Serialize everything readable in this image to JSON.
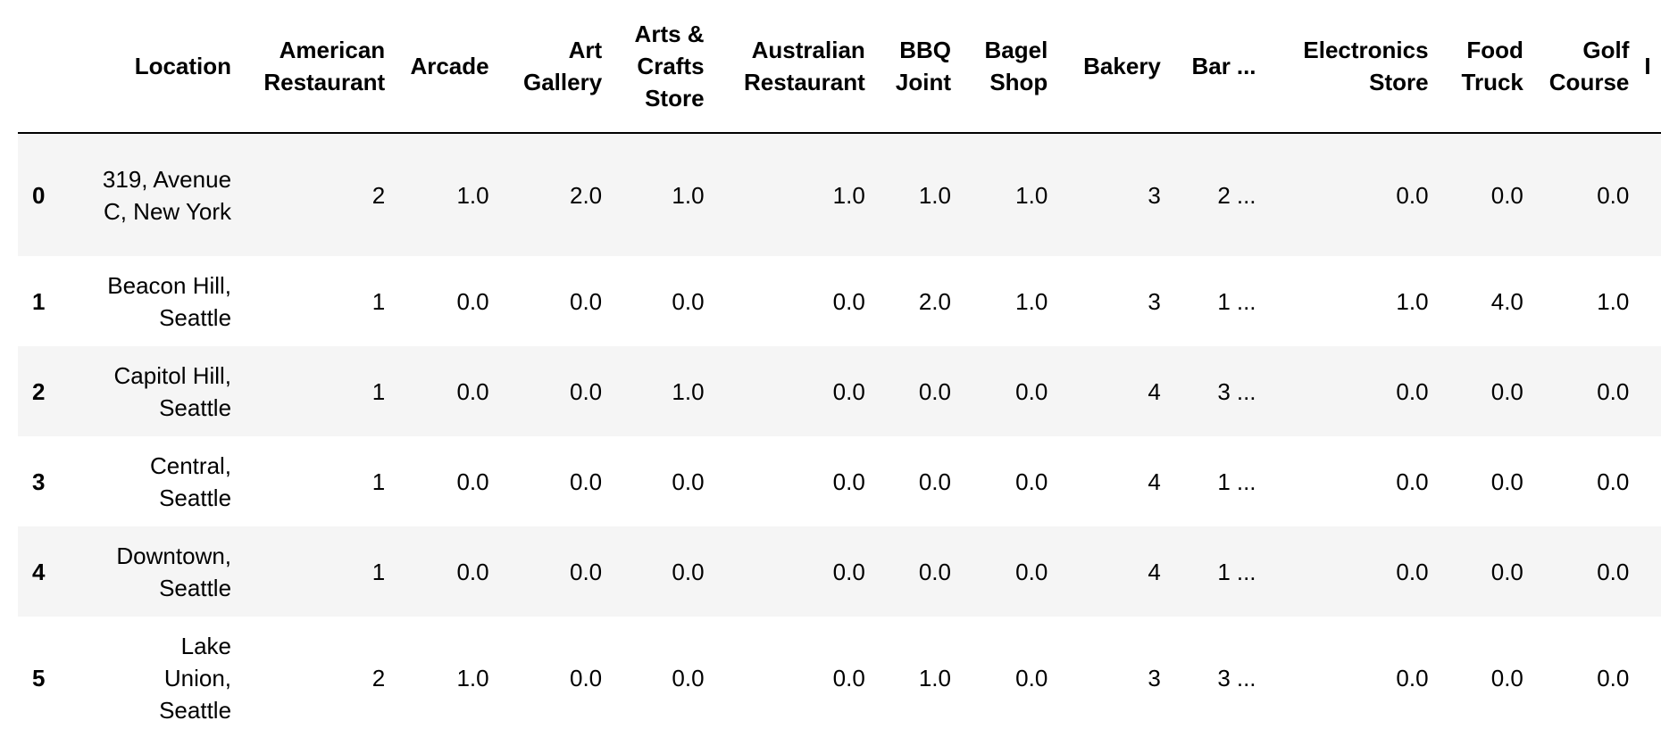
{
  "table": {
    "columns": [
      "Location",
      "American Restaurant",
      "Arcade",
      "Art Gallery",
      "Arts & Crafts Store",
      "Australian Restaurant",
      "BBQ Joint",
      "Bagel Shop",
      "Bakery",
      "Bar",
      "...",
      "Electronics Store",
      "Food Truck",
      "Golf Course",
      "I"
    ],
    "rows": [
      {
        "index": "0",
        "cells": [
          "319, Avenue C, New York",
          "2",
          "1.0",
          "2.0",
          "1.0",
          "1.0",
          "1.0",
          "1.0",
          "3",
          "2",
          "...",
          "0.0",
          "0.0",
          "0.0",
          ""
        ]
      },
      {
        "index": "1",
        "cells": [
          "Beacon Hill, Seattle",
          "1",
          "0.0",
          "0.0",
          "0.0",
          "0.0",
          "2.0",
          "1.0",
          "3",
          "1",
          "...",
          "1.0",
          "4.0",
          "1.0",
          ""
        ]
      },
      {
        "index": "2",
        "cells": [
          "Capitol Hill, Seattle",
          "1",
          "0.0",
          "0.0",
          "1.0",
          "0.0",
          "0.0",
          "0.0",
          "4",
          "3",
          "...",
          "0.0",
          "0.0",
          "0.0",
          ""
        ]
      },
      {
        "index": "3",
        "cells": [
          "Central, Seattle",
          "1",
          "0.0",
          "0.0",
          "0.0",
          "0.0",
          "0.0",
          "0.0",
          "4",
          "1",
          "...",
          "0.0",
          "0.0",
          "0.0",
          ""
        ]
      },
      {
        "index": "4",
        "cells": [
          "Downtown, Seattle",
          "1",
          "0.0",
          "0.0",
          "0.0",
          "0.0",
          "0.0",
          "0.0",
          "4",
          "1",
          "...",
          "0.0",
          "0.0",
          "0.0",
          ""
        ]
      },
      {
        "index": "5",
        "cells": [
          "Lake Union, Seattle",
          "2",
          "1.0",
          "0.0",
          "0.0",
          "0.0",
          "1.0",
          "0.0",
          "3",
          "3",
          "...",
          "0.0",
          "0.0",
          "0.0",
          ""
        ]
      }
    ]
  },
  "colors": {
    "stripe": "#f5f5f5",
    "background": "#ffffff",
    "text": "#000000",
    "header_rule": "#000000"
  }
}
